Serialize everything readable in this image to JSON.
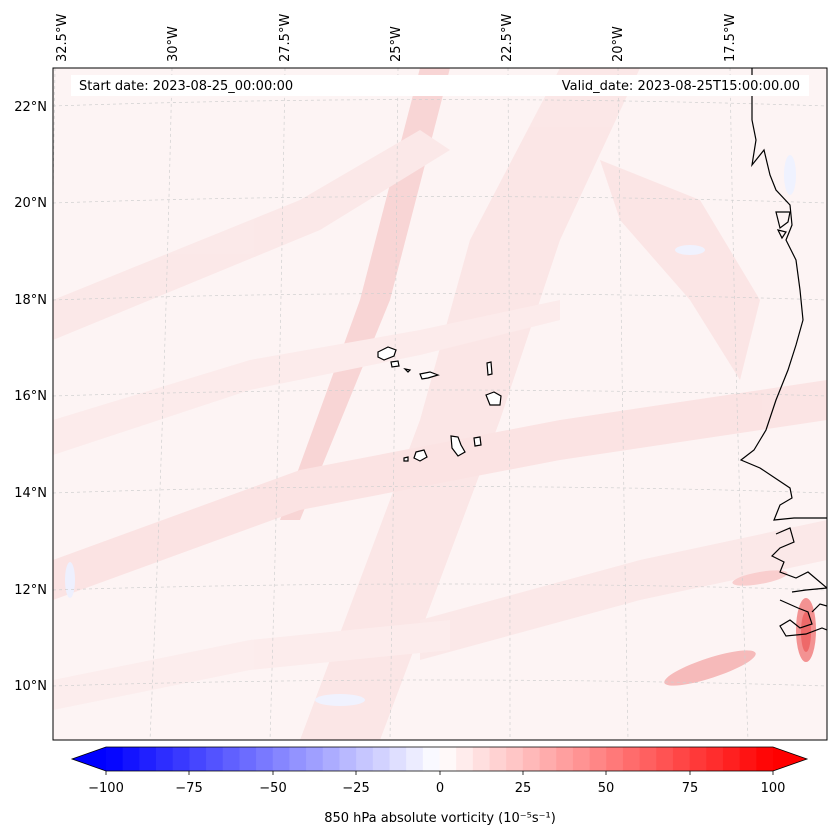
{
  "map": {
    "region": "Eastern tropical North Atlantic with Cape Verde Islands and West African coast",
    "start_label": "Start date: 2023-08-25_00:00:00",
    "valid_label": "Valid_date: 2023-08-25T15:00:00.00",
    "lon_ticks": [
      "32.5°W",
      "30°W",
      "27.5°W",
      "25°W",
      "22.5°W",
      "20°W",
      "17.5°W"
    ],
    "lat_ticks": [
      "22°N",
      "20°N",
      "18°N",
      "16°N",
      "14°N",
      "12°N",
      "10°N"
    ],
    "gridlines": true,
    "coastline_color": "#000000",
    "field_colors": {
      "background": "#fdf3f3",
      "band": "#fbe0e0",
      "strong": "#f36a6a",
      "weak_negative": "#eef0ff"
    }
  },
  "colorbar": {
    "label": "850 hPa absolute vorticity (10⁻⁵s⁻¹)",
    "ticks": [
      "−100",
      "−75",
      "−50",
      "−25",
      "0",
      "25",
      "50",
      "75",
      "100"
    ],
    "min": -100,
    "max": 100,
    "colormap": "bwr",
    "low_color": "#0000ff",
    "mid_color": "#ffffff",
    "high_color": "#ff0000"
  }
}
